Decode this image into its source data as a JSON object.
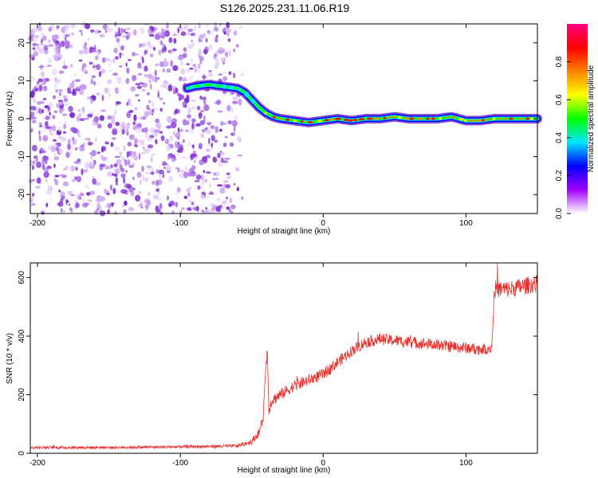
{
  "title": "S126.2025.231.11.06.R19",
  "chart_data": [
    {
      "type": "heatmap",
      "xlabel": "Height of straight line (km)",
      "ylabel": "Frequency (Hz)",
      "xlim": [
        -205,
        150
      ],
      "ylim": [
        -25,
        25
      ],
      "xticks": [
        -200,
        -100,
        0,
        100
      ],
      "yticks": [
        -20,
        -10,
        0,
        10,
        20
      ],
      "colorbar": {
        "label": "Normalized spectral amplitude",
        "range": [
          0.0,
          1.0
        ],
        "ticks": [
          "0.0",
          "0.2",
          "0.4",
          "0.6",
          "0.8"
        ],
        "colors": [
          "#ffffff",
          "#a000ff",
          "#0000ff",
          "#00e5ff",
          "#00ff00",
          "#ffff00",
          "#ff8000",
          "#ff0000",
          "#ff0080"
        ]
      },
      "noise_region": {
        "x": [
          -205,
          -55
        ],
        "y": [
          -25,
          25
        ],
        "level": 0.15
      },
      "trace": {
        "x": [
          -95,
          -90,
          -80,
          -70,
          -60,
          -55,
          -50,
          -45,
          -40,
          -35,
          -30,
          -20,
          -10,
          0,
          10,
          20,
          30,
          40,
          50,
          60,
          70,
          80,
          90,
          100,
          110,
          120,
          130,
          140,
          150
        ],
        "y": [
          8,
          8.5,
          9,
          8.5,
          8,
          7,
          5,
          3,
          1.5,
          0.5,
          0,
          -0.5,
          -1,
          -0.5,
          0,
          -0.5,
          0,
          0,
          0.5,
          0,
          0,
          0,
          0.5,
          -0.5,
          -0.5,
          0,
          0,
          0,
          0
        ]
      }
    },
    {
      "type": "line",
      "xlabel": "Height of straight line (km)",
      "ylabel": "SNR (10 * v/v)",
      "xlim": [
        -205,
        150
      ],
      "ylim": [
        0,
        650
      ],
      "xticks": [
        -200,
        -100,
        0,
        100
      ],
      "yticks": [
        0,
        200,
        400,
        600
      ],
      "series": [
        {
          "color": "#e8312d",
          "x": [
            -205,
            -150,
            -100,
            -60,
            -50,
            -45,
            -42,
            -40,
            -39,
            -38,
            -36,
            -30,
            -20,
            -10,
            0,
            10,
            20,
            30,
            40,
            50,
            60,
            70,
            80,
            90,
            100,
            110,
            118,
            120,
            130,
            140,
            150
          ],
          "y": [
            20,
            20,
            22,
            25,
            40,
            70,
            120,
            300,
            350,
            150,
            180,
            200,
            230,
            250,
            270,
            310,
            350,
            380,
            390,
            385,
            380,
            375,
            370,
            365,
            360,
            355,
            360,
            560,
            560,
            570,
            580
          ],
          "noise": [
            10,
            10,
            10,
            12,
            20,
            30,
            40,
            50,
            50,
            40,
            40,
            40,
            40,
            40,
            40,
            40,
            40,
            40,
            40,
            40,
            40,
            40,
            40,
            40,
            40,
            40,
            40,
            60,
            60,
            60,
            60
          ]
        }
      ]
    }
  ]
}
